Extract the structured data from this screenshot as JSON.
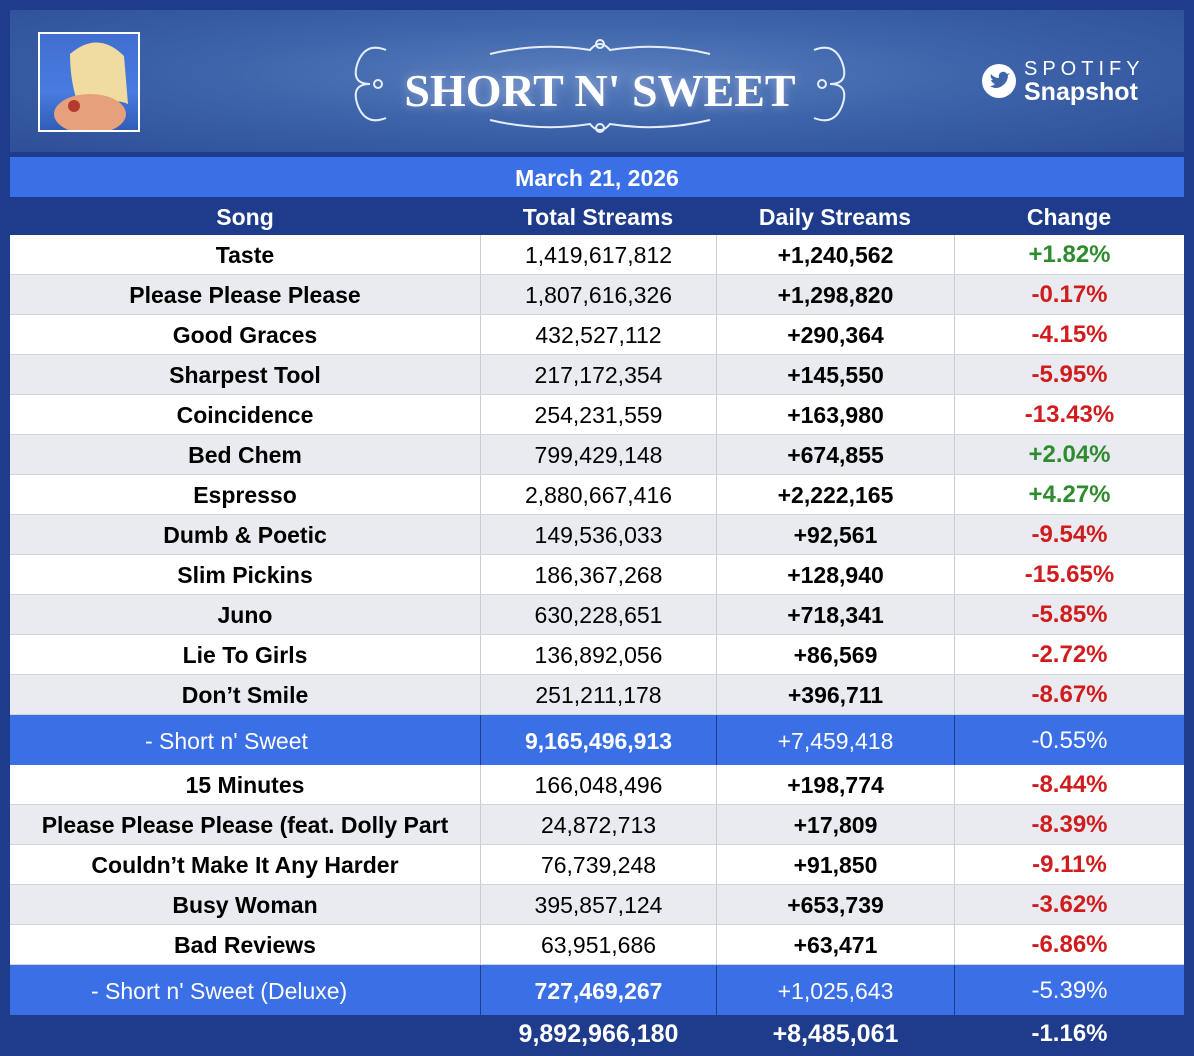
{
  "header": {
    "title": "SHORT N' SWEET",
    "brand_top": "SPOTIFY",
    "brand_bottom": "Snapshot"
  },
  "date": "March 21, 2026",
  "columns": {
    "song": "Song",
    "total": "Total Streams",
    "daily": "Daily Streams",
    "change": "Change"
  },
  "colors": {
    "positive": "#2e8b2e",
    "negative": "#d01c1c",
    "accent": "#3a6fe6",
    "background": "#1f3c8c"
  },
  "album1": {
    "tracks": [
      {
        "song": "Taste",
        "total": "1,419,617,812",
        "daily": "+1,240,562",
        "change": "+1.82%"
      },
      {
        "song": "Please Please Please",
        "total": "1,807,616,326",
        "daily": "+1,298,820",
        "change": "-0.17%"
      },
      {
        "song": "Good Graces",
        "total": "432,527,112",
        "daily": "+290,364",
        "change": "-4.15%"
      },
      {
        "song": "Sharpest Tool",
        "total": "217,172,354",
        "daily": "+145,550",
        "change": "-5.95%"
      },
      {
        "song": "Coincidence",
        "total": "254,231,559",
        "daily": "+163,980",
        "change": "-13.43%"
      },
      {
        "song": "Bed Chem",
        "total": "799,429,148",
        "daily": "+674,855",
        "change": "+2.04%"
      },
      {
        "song": "Espresso",
        "total": "2,880,667,416",
        "daily": "+2,222,165",
        "change": "+4.27%"
      },
      {
        "song": "Dumb & Poetic",
        "total": "149,536,033",
        "daily": "+92,561",
        "change": "-9.54%"
      },
      {
        "song": "Slim Pickins",
        "total": "186,367,268",
        "daily": "+128,940",
        "change": "-15.65%"
      },
      {
        "song": "Juno",
        "total": "630,228,651",
        "daily": "+718,341",
        "change": "-5.85%"
      },
      {
        "song": "Lie To Girls",
        "total": "136,892,056",
        "daily": "+86,569",
        "change": "-2.72%"
      },
      {
        "song": "Don’t Smile",
        "total": "251,211,178",
        "daily": "+396,711",
        "change": "-8.67%"
      }
    ],
    "summary": {
      "song": "-    Short n' Sweet",
      "total": "9,165,496,913",
      "daily": "+7,459,418",
      "change": "-0.55%"
    }
  },
  "album2": {
    "tracks": [
      {
        "song": "15 Minutes",
        "total": "166,048,496",
        "daily": "+198,774",
        "change": "-8.44%"
      },
      {
        "song": "Please Please Please (feat. Dolly Part",
        "total": "24,872,713",
        "daily": "+17,809",
        "change": "-8.39%"
      },
      {
        "song": "Couldn’t Make It Any Harder",
        "total": "76,739,248",
        "daily": "+91,850",
        "change": "-9.11%"
      },
      {
        "song": "Busy Woman",
        "total": "395,857,124",
        "daily": "+653,739",
        "change": "-3.62%"
      },
      {
        "song": "Bad Reviews",
        "total": "63,951,686",
        "daily": "+63,471",
        "change": "-6.86%"
      }
    ],
    "summary": {
      "song": "-    Short n' Sweet (Deluxe)",
      "total": "727,469,267",
      "daily": "+1,025,643",
      "change": "-5.39%"
    }
  },
  "grand_total": {
    "total": "9,892,966,180",
    "daily": "+8,485,061",
    "change": "-1.16%"
  }
}
